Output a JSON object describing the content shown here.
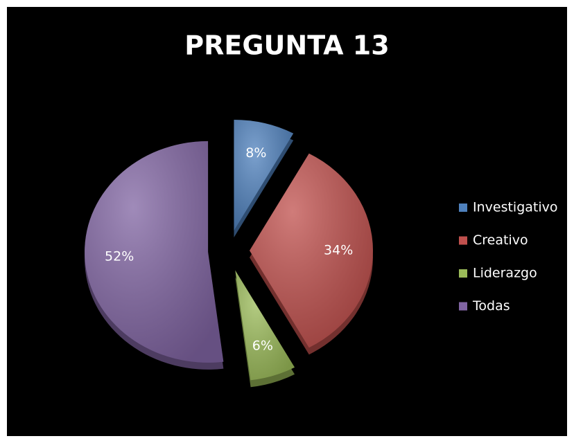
{
  "chart_data": {
    "type": "pie",
    "title": "PREGUNTA 13",
    "categories": [
      "Investigativo",
      "Creativo",
      "Liderazgo",
      "Todas"
    ],
    "values": [
      8,
      34,
      6,
      52
    ],
    "value_labels": [
      "8%",
      "34%",
      "6%",
      "52%"
    ],
    "colors": [
      "#4f81bd",
      "#c0504d",
      "#9bbb59",
      "#8064a2"
    ],
    "legend": "right"
  }
}
